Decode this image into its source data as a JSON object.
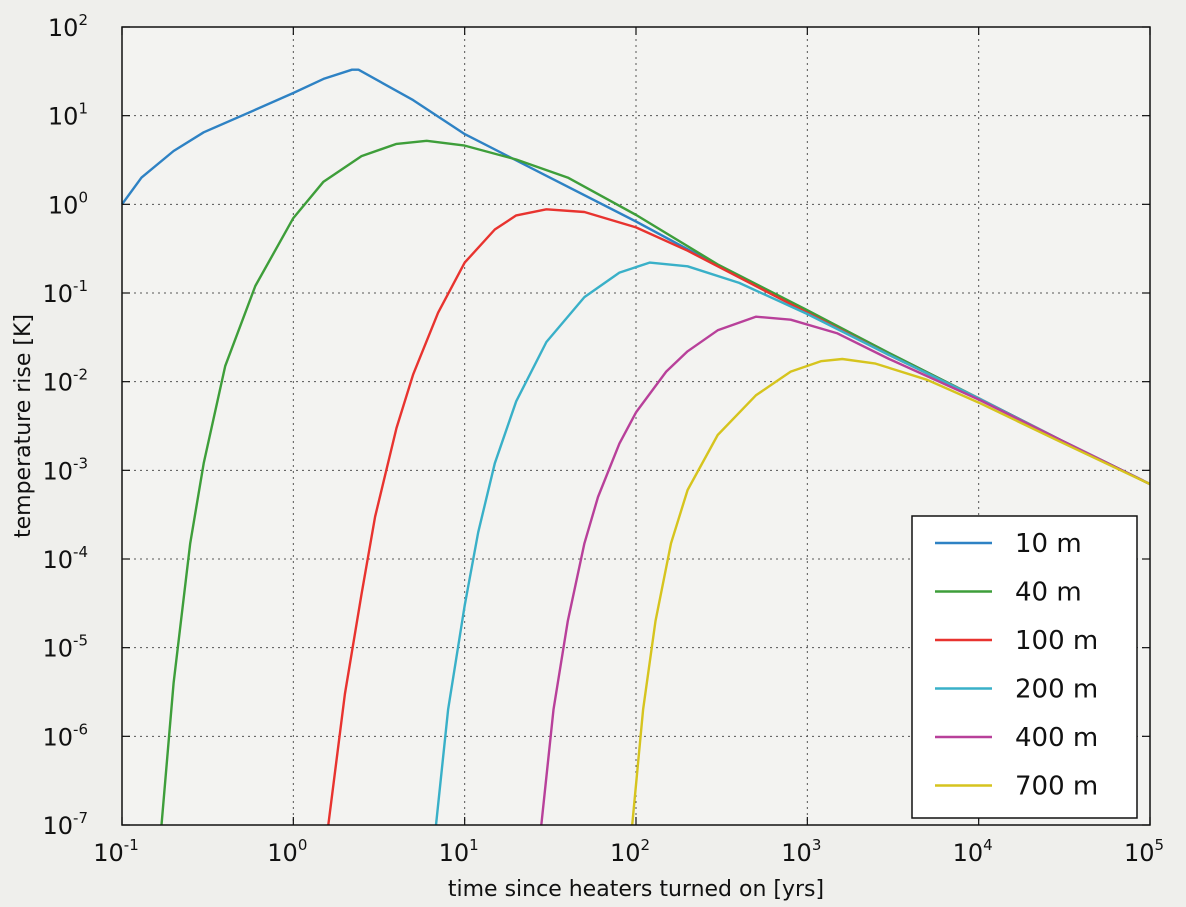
{
  "chart_data": {
    "type": "line",
    "title": "",
    "xlabel": "time since heaters turned on [yrs]",
    "ylabel": "temperature rise [K]",
    "xscale": "log",
    "yscale": "log",
    "xlim": [
      0.1,
      100000
    ],
    "ylim": [
      1e-07,
      100
    ],
    "grid": true,
    "legend_position": "bottom-right",
    "x_ticks": [
      {
        "value": 0.1,
        "base": "10",
        "exp": "-1"
      },
      {
        "value": 1,
        "base": "10",
        "exp": "0"
      },
      {
        "value": 10,
        "base": "10",
        "exp": "1"
      },
      {
        "value": 100,
        "base": "10",
        "exp": "2"
      },
      {
        "value": 1000,
        "base": "10",
        "exp": "3"
      },
      {
        "value": 10000,
        "base": "10",
        "exp": "4"
      },
      {
        "value": 100000,
        "base": "10",
        "exp": "5"
      }
    ],
    "y_ticks": [
      {
        "value": 1e-07,
        "base": "10",
        "exp": "-7"
      },
      {
        "value": 1e-06,
        "base": "10",
        "exp": "-6"
      },
      {
        "value": 1e-05,
        "base": "10",
        "exp": "-5"
      },
      {
        "value": 0.0001,
        "base": "10",
        "exp": "-4"
      },
      {
        "value": 0.001,
        "base": "10",
        "exp": "-3"
      },
      {
        "value": 0.01,
        "base": "10",
        "exp": "-2"
      },
      {
        "value": 0.1,
        "base": "10",
        "exp": "-1"
      },
      {
        "value": 1,
        "base": "10",
        "exp": "0"
      },
      {
        "value": 10,
        "base": "10",
        "exp": "1"
      },
      {
        "value": 100,
        "base": "10",
        "exp": "2"
      }
    ],
    "series": [
      {
        "name": "10 m",
        "color": "#2e82c4",
        "points": [
          [
            0.1,
            1.0
          ],
          [
            0.13,
            2.0
          ],
          [
            0.2,
            4.0
          ],
          [
            0.3,
            6.5
          ],
          [
            0.5,
            10
          ],
          [
            1.0,
            18
          ],
          [
            1.5,
            26
          ],
          [
            2.2,
            33
          ],
          [
            2.4,
            33
          ],
          [
            5,
            15
          ],
          [
            10,
            6.2
          ],
          [
            30,
            2.1
          ],
          [
            100,
            0.64
          ],
          [
            300,
            0.205
          ],
          [
            1000,
            0.063
          ],
          [
            3000,
            0.021
          ],
          [
            10000,
            0.0065
          ],
          [
            30000,
            0.0022
          ],
          [
            100000,
            0.0007
          ]
        ]
      },
      {
        "name": "40 m",
        "color": "#3e9e3a",
        "points": [
          [
            0.17,
            1e-07
          ],
          [
            0.2,
            4e-06
          ],
          [
            0.25,
            0.00015
          ],
          [
            0.3,
            0.0012
          ],
          [
            0.4,
            0.015
          ],
          [
            0.6,
            0.12
          ],
          [
            1.0,
            0.7
          ],
          [
            1.5,
            1.8
          ],
          [
            2.5,
            3.5
          ],
          [
            4,
            4.8
          ],
          [
            6,
            5.2
          ],
          [
            10,
            4.6
          ],
          [
            20,
            3.2
          ],
          [
            40,
            2.0
          ],
          [
            100,
            0.76
          ],
          [
            300,
            0.21
          ],
          [
            1000,
            0.064
          ],
          [
            3000,
            0.021
          ],
          [
            10000,
            0.0065
          ],
          [
            30000,
            0.0022
          ],
          [
            100000,
            0.0007
          ]
        ]
      },
      {
        "name": "100 m",
        "color": "#e8332f",
        "points": [
          [
            1.6,
            1e-07
          ],
          [
            2,
            3e-06
          ],
          [
            2.5,
            4e-05
          ],
          [
            3,
            0.0003
          ],
          [
            4,
            0.003
          ],
          [
            5,
            0.012
          ],
          [
            7,
            0.06
          ],
          [
            10,
            0.22
          ],
          [
            15,
            0.52
          ],
          [
            20,
            0.75
          ],
          [
            30,
            0.88
          ],
          [
            50,
            0.82
          ],
          [
            100,
            0.55
          ],
          [
            200,
            0.3
          ],
          [
            400,
            0.15
          ],
          [
            1000,
            0.06
          ],
          [
            3000,
            0.02
          ],
          [
            10000,
            0.0065
          ],
          [
            30000,
            0.0022
          ],
          [
            100000,
            0.0007
          ]
        ]
      },
      {
        "name": "200 m",
        "color": "#39b0c8",
        "points": [
          [
            6.8,
            1e-07
          ],
          [
            8,
            2e-06
          ],
          [
            10,
            3e-05
          ],
          [
            12,
            0.0002
          ],
          [
            15,
            0.0012
          ],
          [
            20,
            0.006
          ],
          [
            30,
            0.028
          ],
          [
            50,
            0.09
          ],
          [
            80,
            0.17
          ],
          [
            120,
            0.22
          ],
          [
            200,
            0.2
          ],
          [
            400,
            0.13
          ],
          [
            1000,
            0.058
          ],
          [
            3000,
            0.02
          ],
          [
            10000,
            0.0065
          ],
          [
            30000,
            0.0022
          ],
          [
            100000,
            0.0007
          ]
        ]
      },
      {
        "name": "400 m",
        "color": "#b8409a",
        "points": [
          [
            28,
            1e-07
          ],
          [
            33,
            2e-06
          ],
          [
            40,
            2e-05
          ],
          [
            50,
            0.00015
          ],
          [
            60,
            0.0005
          ],
          [
            80,
            0.002
          ],
          [
            100,
            0.0045
          ],
          [
            150,
            0.013
          ],
          [
            200,
            0.022
          ],
          [
            300,
            0.038
          ],
          [
            500,
            0.054
          ],
          [
            800,
            0.05
          ],
          [
            1500,
            0.035
          ],
          [
            3000,
            0.018
          ],
          [
            10000,
            0.0063
          ],
          [
            30000,
            0.0022
          ],
          [
            100000,
            0.0007
          ]
        ]
      },
      {
        "name": "700 m",
        "color": "#d6c41e",
        "points": [
          [
            95,
            1e-07
          ],
          [
            110,
            2e-06
          ],
          [
            130,
            2e-05
          ],
          [
            160,
            0.00015
          ],
          [
            200,
            0.0006
          ],
          [
            300,
            0.0025
          ],
          [
            500,
            0.007
          ],
          [
            800,
            0.013
          ],
          [
            1200,
            0.017
          ],
          [
            1600,
            0.018
          ],
          [
            2500,
            0.016
          ],
          [
            5000,
            0.0105
          ],
          [
            10000,
            0.0058
          ],
          [
            30000,
            0.0021
          ],
          [
            100000,
            0.0007
          ]
        ]
      }
    ]
  }
}
